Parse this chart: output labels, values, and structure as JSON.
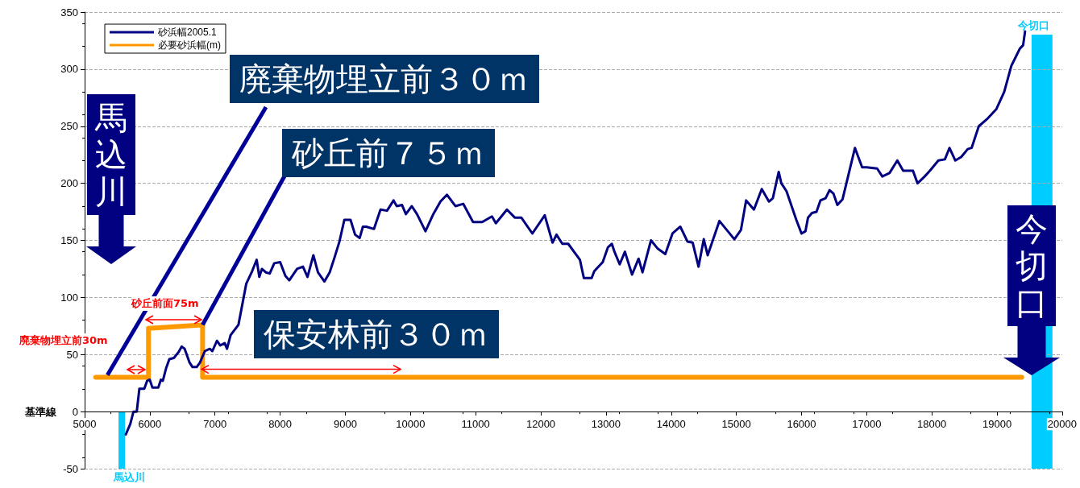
{
  "chart_data": {
    "type": "line",
    "series": [
      {
        "name": "砂浜幅2005.1",
        "color": "#000080",
        "x": [
          5632,
          5700,
          5750,
          5800,
          5840,
          5915,
          5960,
          6000,
          6040,
          6130,
          6170,
          6200,
          6250,
          6300,
          6370,
          6440,
          6490,
          6535,
          6610,
          6655,
          6720,
          6770,
          6845,
          6920,
          6960,
          7030,
          7080,
          7150,
          7185,
          7240,
          7360,
          7480,
          7570,
          7640,
          7680,
          7720,
          7780,
          7840,
          7910,
          8000,
          8080,
          8140,
          8260,
          8350,
          8420,
          8510,
          8580,
          8680,
          8760,
          8840,
          8910,
          8985,
          9080,
          9150,
          9220,
          9270,
          9320,
          9440,
          9540,
          9640,
          9740,
          9790,
          9870,
          9930,
          10020,
          10100,
          10230,
          10350,
          10460,
          10560,
          10690,
          10810,
          10960,
          11030,
          11100,
          11250,
          11310,
          11480,
          11600,
          11700,
          11870,
          12060,
          12180,
          12240,
          12330,
          12420,
          12600,
          12660,
          12780,
          12820,
          12950,
          13030,
          13090,
          13130,
          13210,
          13290,
          13400,
          13500,
          13560,
          13690,
          13790,
          13910,
          14020,
          14140,
          14250,
          14330,
          14420,
          14500,
          14560,
          14740,
          14970,
          15070,
          15150,
          15270,
          15390,
          15500,
          15560,
          15650,
          15690,
          15770,
          15920,
          16000,
          16060,
          16100,
          16160,
          16230,
          16290,
          16370,
          16430,
          16490,
          16550,
          16630,
          16820,
          16930,
          17000,
          17160,
          17240,
          17350,
          17470,
          17560,
          17710,
          17780,
          17890,
          17970,
          18100,
          18200,
          18270,
          18360,
          18450,
          18550,
          18610,
          18720,
          18860,
          18990,
          19110,
          19220,
          19290,
          19350,
          19400,
          19430
        ],
        "values": [
          -20,
          -11,
          0,
          0,
          20,
          20,
          27,
          28,
          21,
          21,
          28,
          27,
          38,
          46,
          47,
          52,
          57,
          55,
          43,
          39,
          39,
          43,
          53,
          55,
          53,
          62,
          58,
          60,
          55,
          67,
          76,
          112,
          123,
          133,
          118,
          125,
          122,
          121,
          130,
          131,
          119,
          115,
          125,
          127,
          118,
          137,
          122,
          114,
          122,
          136,
          149,
          168,
          168,
          155,
          152,
          162,
          162,
          160,
          177,
          176,
          185,
          180,
          181,
          173,
          180,
          173,
          158,
          173,
          184,
          190,
          180,
          182,
          166,
          166,
          166,
          171,
          165,
          177,
          170,
          170,
          156,
          172,
          148,
          155,
          147,
          147,
          133,
          117,
          117,
          123,
          131,
          144,
          147,
          140,
          129,
          140,
          120,
          134,
          122,
          150,
          143,
          138,
          156,
          162,
          149,
          148,
          127,
          151,
          137,
          167,
          151,
          159,
          185,
          177,
          195,
          184,
          187,
          210,
          200,
          193,
          168,
          156,
          158,
          170,
          174,
          175,
          185,
          187,
          194,
          191,
          181,
          186,
          231,
          214,
          214,
          213,
          206,
          209,
          220,
          211,
          211,
          200,
          206,
          211,
          220,
          221,
          231,
          220,
          223,
          230,
          231,
          250,
          257,
          265,
          280,
          303,
          311,
          318,
          321,
          333
        ]
      },
      {
        "name": "必要砂浜幅(m)",
        "color": "#ff9900",
        "x": [
          5170,
          5980,
          5980,
          6810,
          6810,
          19380
        ],
        "values": [
          30,
          30,
          73,
          76,
          30,
          30
        ]
      }
    ],
    "xlim": [
      5000,
      20000
    ],
    "xticks": [
      5000,
      6000,
      7000,
      8000,
      9000,
      10000,
      11000,
      12000,
      13000,
      14000,
      15000,
      16000,
      17000,
      18000,
      19000,
      20000
    ],
    "ylim": [
      -50,
      350
    ],
    "yticks": [
      -50,
      0,
      50,
      100,
      150,
      200,
      250,
      300,
      350
    ],
    "grid": "y",
    "legend": "top left",
    "marker": "none",
    "line_style": "solid",
    "bands": [
      {
        "axis": "x",
        "from": 5520,
        "to": 5620,
        "label": "馬込川",
        "color": "#00ccff"
      },
      {
        "axis": "x",
        "from": 19530,
        "to": 19850,
        "label": "今切口",
        "color": "#00ccff"
      }
    ],
    "annotations": [
      {
        "text": "廃棄物埋立前３０ｍ",
        "x": 5350,
        "y": 32
      },
      {
        "text": "砂丘前７５ｍ",
        "x": 6810,
        "y": 76
      },
      {
        "text": "保安林前３０ｍ",
        "x": 8350,
        "y": 30
      },
      "馬込川",
      "今切口",
      "砂丘前面75m",
      "廃棄物埋立前30m",
      "基準線"
    ]
  }
}
